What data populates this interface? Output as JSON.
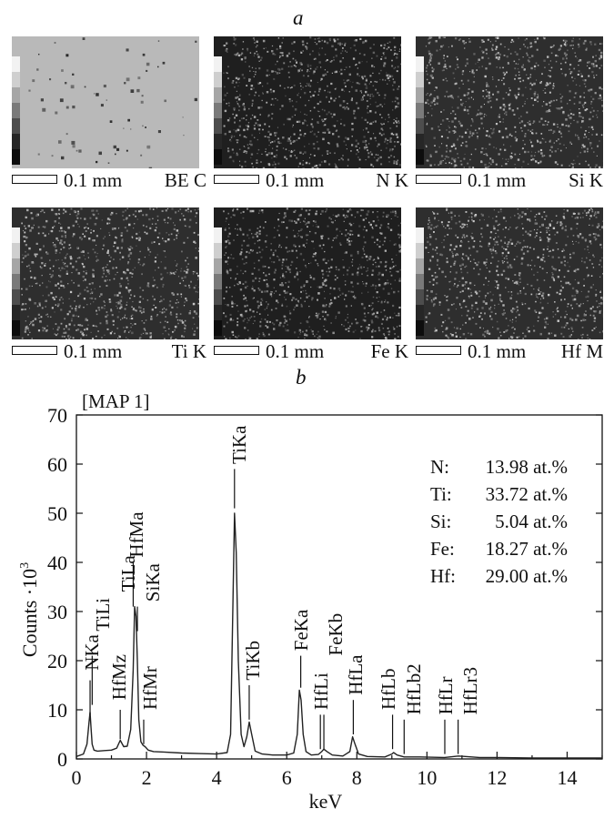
{
  "panel_a_label": "a",
  "panel_b_label": "b",
  "maps": [
    {
      "scale": "0.1 mm",
      "element": "BE  C",
      "style": "be"
    },
    {
      "scale": "0.1 mm",
      "element": "N  K",
      "style": "dark"
    },
    {
      "scale": "0.1 mm",
      "element": "Si  K",
      "style": "mid"
    },
    {
      "scale": "0.1 mm",
      "element": "Ti  K",
      "style": "mid"
    },
    {
      "scale": "0.1 mm",
      "element": "Fe  K",
      "style": "dark"
    },
    {
      "scale": "0.1 mm",
      "element": "Hf  M",
      "style": "mid"
    }
  ],
  "chart_data": {
    "type": "line",
    "title": "[MAP 1]",
    "xlabel": "keV",
    "ylabel": "Counts ·10",
    "ylabel_sup": "3",
    "xlim": [
      0,
      15
    ],
    "ylim": [
      0,
      70
    ],
    "xticks": [
      0,
      2,
      4,
      6,
      8,
      10,
      12,
      14
    ],
    "yticks": [
      0,
      10,
      20,
      30,
      40,
      50,
      60,
      70
    ],
    "series": [
      {
        "x": [
          0.0,
          0.2,
          0.3,
          0.36,
          0.39,
          0.42,
          0.45,
          0.5,
          0.6,
          0.8,
          1.0,
          1.15,
          1.25,
          1.35,
          1.45,
          1.55,
          1.62,
          1.66,
          1.7,
          1.74,
          1.78,
          1.84,
          1.9,
          1.96,
          2.05,
          2.2,
          2.5,
          3.0,
          3.5,
          4.0,
          4.3,
          4.4,
          4.47,
          4.51,
          4.56,
          4.62,
          4.7,
          4.78,
          4.86,
          4.93,
          5.0,
          5.1,
          5.3,
          5.6,
          6.0,
          6.2,
          6.3,
          6.36,
          6.41,
          6.47,
          6.55,
          6.7,
          6.9,
          7.0,
          7.06,
          7.15,
          7.3,
          7.6,
          7.8,
          7.88,
          7.95,
          8.05,
          8.3,
          8.8,
          9.0,
          9.05,
          9.15,
          9.35,
          9.8,
          10.5,
          10.9,
          11.5,
          12.0,
          13.0,
          14.0,
          15.0
        ],
        "y": [
          0.5,
          1.0,
          3.0,
          7.5,
          9.5,
          6.0,
          3.0,
          1.8,
          1.6,
          1.7,
          1.8,
          2.2,
          3.8,
          2.5,
          2.6,
          6.0,
          18.0,
          31.0,
          29.0,
          20.0,
          8.0,
          3.5,
          2.8,
          2.5,
          1.8,
          1.5,
          1.4,
          1.2,
          1.1,
          1.0,
          1.3,
          5.0,
          33.0,
          50.0,
          42.0,
          20.0,
          5.0,
          2.5,
          4.5,
          7.5,
          5.0,
          1.6,
          1.0,
          0.8,
          0.8,
          1.2,
          5.0,
          14.0,
          12.0,
          5.0,
          1.5,
          0.8,
          0.9,
          1.5,
          2.0,
          1.5,
          0.8,
          0.6,
          1.5,
          4.5,
          3.0,
          1.0,
          0.5,
          0.4,
          1.0,
          1.3,
          0.8,
          0.4,
          0.4,
          0.3,
          0.6,
          0.3,
          0.3,
          0.2,
          0.2,
          0.2
        ]
      }
    ],
    "peaks": [
      {
        "label": "NKa",
        "x": 0.39,
        "y0": 9,
        "y1": 16
      },
      {
        "label": "TiLi",
        "x": 0.45,
        "y0": 11,
        "y1": 21
      },
      {
        "label": "TiLa",
        "x": 0.47,
        "y0": 0,
        "y1": 0
      },
      {
        "label": "HfMz",
        "x": 1.25,
        "y0": 4,
        "y1": 10
      },
      {
        "label": "HfMa",
        "x": 1.62,
        "y0": 31,
        "y1": 40
      },
      {
        "label": "SiKa",
        "x": 1.74,
        "y0": 26,
        "y1": 31
      },
      {
        "label": "HfMr",
        "x": 1.92,
        "y0": 3,
        "y1": 8
      },
      {
        "label": "TiKa",
        "x": 4.51,
        "y0": 51,
        "y1": 59
      },
      {
        "label": "TiKb",
        "x": 4.93,
        "y0": 8,
        "y1": 15
      },
      {
        "label": "FeKa",
        "x": 6.4,
        "y0": 14.5,
        "y1": 21
      },
      {
        "label": "HfLi",
        "x": 6.96,
        "y0": 2,
        "y1": 9
      },
      {
        "label": "FeKb",
        "x": 7.06,
        "y0": 2,
        "y1": 9
      },
      {
        "label": "HfLa",
        "x": 7.9,
        "y0": 5,
        "y1": 12
      },
      {
        "label": "HfLb",
        "x": 9.02,
        "y0": 2,
        "y1": 9
      },
      {
        "label": "HfLb2",
        "x": 9.35,
        "y0": 1,
        "y1": 8
      },
      {
        "label": "HfLr",
        "x": 10.51,
        "y0": 1,
        "y1": 8
      },
      {
        "label": "HfLr3",
        "x": 10.89,
        "y0": 1,
        "y1": 8
      }
    ],
    "composition": [
      {
        "el": "N:",
        "val": "13.98 at.%"
      },
      {
        "el": "Ti:",
        "val": "33.72 at.%"
      },
      {
        "el": "Si:",
        "val": "5.04 at.%"
      },
      {
        "el": "Fe:",
        "val": "18.27 at.%"
      },
      {
        "el": "Hf:",
        "val": "29.00 at.%"
      }
    ]
  }
}
